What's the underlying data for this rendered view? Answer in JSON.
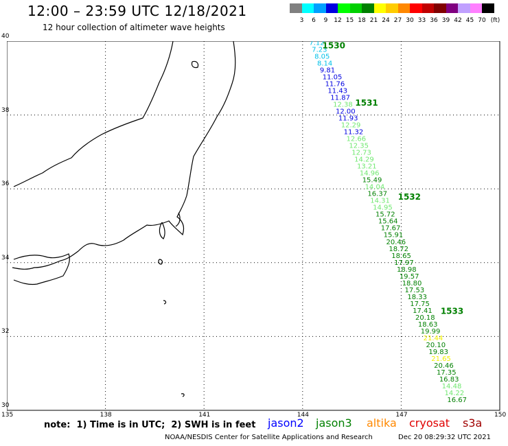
{
  "header": {
    "title": "12:00 – 23:59 UTC 12/18/2021",
    "subtitle": "12 hour collection of altimeter wave heights"
  },
  "legend": {
    "unit": "(ft)",
    "bins": [
      {
        "label": "3",
        "color": "#808080"
      },
      {
        "label": "6",
        "color": "#00ffff"
      },
      {
        "label": "9",
        "color": "#00a0ff"
      },
      {
        "label": "12",
        "color": "#0000e0"
      },
      {
        "label": "15",
        "color": "#00ff00"
      },
      {
        "label": "18",
        "color": "#00d000"
      },
      {
        "label": "21",
        "color": "#008000"
      },
      {
        "label": "24",
        "color": "#ffff00"
      },
      {
        "label": "27",
        "color": "#ffcc00"
      },
      {
        "label": "30",
        "color": "#ff8800"
      },
      {
        "label": "33",
        "color": "#ff0000"
      },
      {
        "label": "36",
        "color": "#c00000"
      },
      {
        "label": "39",
        "color": "#800000"
      },
      {
        "label": "42",
        "color": "#800080"
      },
      {
        "label": "45",
        "color": "#c0a0ff"
      },
      {
        "label": "70",
        "color": "#ff80ff"
      },
      {
        "label": "",
        "color": "#000000"
      }
    ]
  },
  "map": {
    "lon_range": [
      135,
      150
    ],
    "lat_range": [
      30,
      40
    ],
    "lon_ticks": [
      135,
      138,
      141,
      144,
      147,
      150
    ],
    "lat_ticks": [
      30,
      32,
      34,
      36,
      38,
      40
    ]
  },
  "passes": [
    {
      "time": "1530",
      "lon": 144.6,
      "lat": 39.9
    },
    {
      "time": "1531",
      "lon": 145.6,
      "lat": 38.35
    },
    {
      "time": "1532",
      "lon": 146.9,
      "lat": 35.8
    },
    {
      "time": "1533",
      "lon": 148.2,
      "lat": 32.7
    }
  ],
  "track": {
    "start": {
      "lon": 144.2,
      "lat": 39.97
    },
    "end": {
      "lon": 148.4,
      "lat": 30.3
    },
    "values": [
      {
        "v": "7.12",
        "c": "#00c0e8"
      },
      {
        "v": "7.23",
        "c": "#00c0e8"
      },
      {
        "v": "8.05",
        "c": "#00c0e8"
      },
      {
        "v": "8.14",
        "c": "#00c0e8"
      },
      {
        "v": "9.81",
        "c": "#0000e0"
      },
      {
        "v": "11.05",
        "c": "#0000e0"
      },
      {
        "v": "11.76",
        "c": "#0000e0"
      },
      {
        "v": "11.43",
        "c": "#0000e0"
      },
      {
        "v": "11.87",
        "c": "#0000e0"
      },
      {
        "v": "12.38",
        "c": "#70e870"
      },
      {
        "v": "12.00",
        "c": "#0000e0"
      },
      {
        "v": "11.93",
        "c": "#0000e0"
      },
      {
        "v": "12.29",
        "c": "#70e870"
      },
      {
        "v": "11.32",
        "c": "#0000e0"
      },
      {
        "v": "12.66",
        "c": "#70e870"
      },
      {
        "v": "12.35",
        "c": "#70e870"
      },
      {
        "v": "12.73",
        "c": "#70e870"
      },
      {
        "v": "14.29",
        "c": "#70e870"
      },
      {
        "v": "13.21",
        "c": "#70e870"
      },
      {
        "v": "14.96",
        "c": "#70e870"
      },
      {
        "v": "15.49",
        "c": "#008000"
      },
      {
        "v": "14.04",
        "c": "#70e870"
      },
      {
        "v": "16.37",
        "c": "#008000"
      },
      {
        "v": "14.31",
        "c": "#70e870"
      },
      {
        "v": "14.95",
        "c": "#70e870"
      },
      {
        "v": "15.72",
        "c": "#008000"
      },
      {
        "v": "15.64",
        "c": "#008000"
      },
      {
        "v": "17.67",
        "c": "#008000"
      },
      {
        "v": "15.91",
        "c": "#008000"
      },
      {
        "v": "20.46",
        "c": "#008000"
      },
      {
        "v": "18.72",
        "c": "#008000"
      },
      {
        "v": "18.65",
        "c": "#008000"
      },
      {
        "v": "17.97",
        "c": "#008000"
      },
      {
        "v": "18.98",
        "c": "#008000"
      },
      {
        "v": "19.57",
        "c": "#008000"
      },
      {
        "v": "18.80",
        "c": "#008000"
      },
      {
        "v": "17.53",
        "c": "#008000"
      },
      {
        "v": "18.33",
        "c": "#008000"
      },
      {
        "v": "17.75",
        "c": "#008000"
      },
      {
        "v": "17.41",
        "c": "#008000"
      },
      {
        "v": "20.18",
        "c": "#008000"
      },
      {
        "v": "18.63",
        "c": "#008000"
      },
      {
        "v": "19.99",
        "c": "#008000"
      },
      {
        "v": "21.44",
        "c": "#f0f000"
      },
      {
        "v": "20.10",
        "c": "#008000"
      },
      {
        "v": "19.83",
        "c": "#008000"
      },
      {
        "v": "21.65",
        "c": "#f0f000"
      },
      {
        "v": "20.46",
        "c": "#008000"
      },
      {
        "v": "17.35",
        "c": "#008000"
      },
      {
        "v": "16.83",
        "c": "#008000"
      },
      {
        "v": "14.48",
        "c": "#70e870"
      },
      {
        "v": "14.22",
        "c": "#70e870"
      },
      {
        "v": "16.67",
        "c": "#008000"
      }
    ]
  },
  "footer": {
    "note": "note:  1) Time is in UTC;  2) SWH is in feet",
    "satellites": [
      {
        "name": "jason2",
        "color": "#0000ff"
      },
      {
        "name": "jason3",
        "color": "#008000"
      },
      {
        "name": "altika",
        "color": "#ff8800"
      },
      {
        "name": "cryosat",
        "color": "#e00000"
      },
      {
        "name": "s3a",
        "color": "#a00000"
      }
    ],
    "credit": "NOAA/NESDIS Center for Satellite Applications and Research",
    "timestamp": "Dec 20 08:29:32 UTC 2021"
  }
}
